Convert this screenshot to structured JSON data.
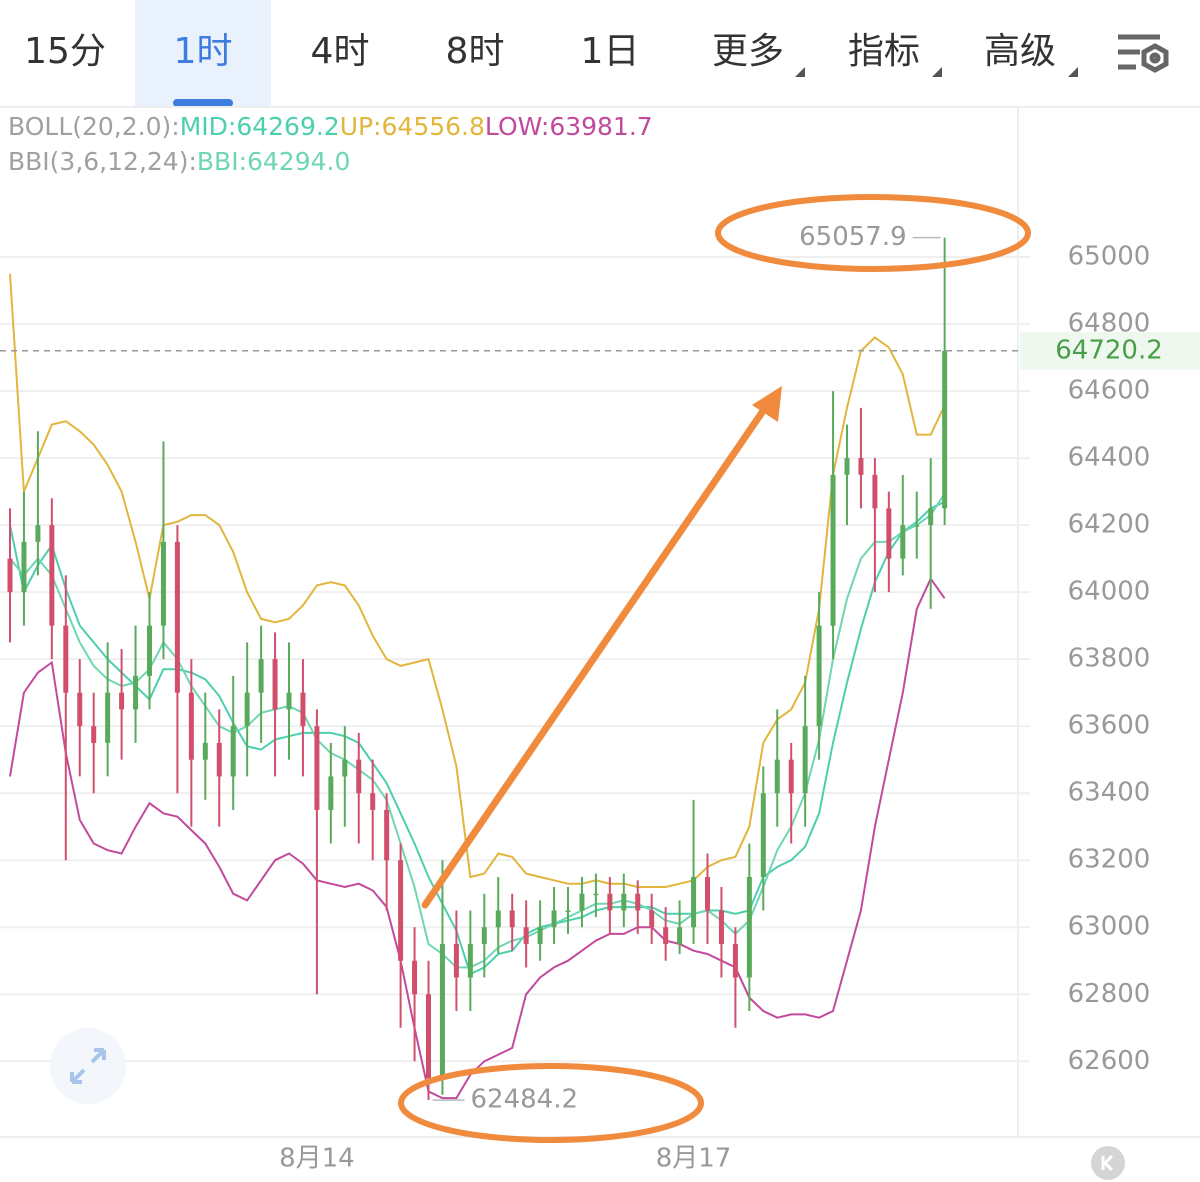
{
  "tabs": [
    "15分",
    "1时",
    "4时",
    "8时",
    "1日"
  ],
  "selected_tab": 1,
  "menus": [
    "更多",
    "指标",
    "高级"
  ],
  "chart_data": {
    "type": "candlestick",
    "indicators": [
      {
        "label": "BOLL(20,2.0):",
        "series": [
          {
            "name": "MID:",
            "color": "#4ccfae",
            "value_label": "64269.2",
            "values": [
              64200,
              64000,
              64080,
              64140,
              64010,
              63900,
              63850,
              63800,
              63760,
              63720,
              63680,
              63770,
              63770,
              63760,
              63740,
              63690,
              63610,
              63540,
              63530,
              63560,
              63570,
              63580,
              63580,
              63580,
              63570,
              63550,
              63490,
              63430,
              63340,
              63250,
              63150,
              63070,
              62990,
              62860,
              62880,
              62920,
              62930,
              62980,
              63000,
              63010,
              63020,
              63030,
              63050,
              63060,
              63060,
              63060,
              63060,
              63040,
              63040,
              63040,
              63050,
              63050,
              63040,
              63050,
              63150,
              63180,
              63200,
              63240,
              63340,
              63550,
              63730,
              63890,
              64030,
              64120,
              64180,
              64210,
              64250,
              64269.2
            ]
          },
          {
            "name": "UP:",
            "color": "#e2b53c",
            "value_label": "64556.8",
            "values": [
              64950,
              64300,
              64400,
              64500,
              64510,
              64480,
              64440,
              64380,
              64300,
              64150,
              63980,
              64200,
              64210,
              64230,
              64230,
              64200,
              64120,
              64000,
              63920,
              63910,
              63920,
              63960,
              64020,
              64030,
              64020,
              63960,
              63870,
              63800,
              63780,
              63790,
              63800,
              63650,
              63480,
              63150,
              63160,
              63220,
              63210,
              63160,
              63150,
              63140,
              63130,
              63130,
              63140,
              63130,
              63130,
              63120,
              63120,
              63120,
              63130,
              63140,
              63180,
              63200,
              63210,
              63300,
              63550,
              63620,
              63650,
              63730,
              63950,
              64350,
              64550,
              64720,
              64760,
              64730,
              64650,
              64470,
              64470,
              64556.8
            ]
          },
          {
            "name": "LOW:",
            "color": "#c24a9c",
            "value_label": "63981.7",
            "values": [
              63450,
              63700,
              63760,
              63790,
              63520,
              63320,
              63250,
              63230,
              63220,
              63300,
              63370,
              63340,
              63330,
              63290,
              63250,
              63180,
              63100,
              63080,
              63140,
              63200,
              63220,
              63190,
              63140,
              63130,
              63120,
              63130,
              63110,
              63060,
              62900,
              62700,
              62510,
              62490,
              62490,
              62560,
              62600,
              62620,
              62640,
              62800,
              62850,
              62880,
              62900,
              62930,
              62960,
              62980,
              62980,
              63000,
              63000,
              62960,
              62950,
              62930,
              62920,
              62900,
              62880,
              62790,
              62750,
              62730,
              62740,
              62740,
              62730,
              62750,
              62900,
              63050,
              63300,
              63500,
              63700,
              63950,
              64040,
              63981.7
            ]
          }
        ]
      },
      {
        "label": "BBI(3,6,12,24):",
        "series": [
          {
            "name": "BBI:",
            "color": "#6fd6b3",
            "value_label": "64294.0",
            "values": [
              64100,
              64050,
              64100,
              64050,
              63950,
              63850,
              63780,
              63740,
              63720,
              63730,
              63770,
              63850,
              63800,
              63720,
              63660,
              63600,
              63580,
              63600,
              63640,
              63650,
              63660,
              63640,
              63560,
              63520,
              63500,
              63470,
              63440,
              63380,
              63250,
              63120,
              62950,
              62920,
              62880,
              62880,
              62900,
              62940,
              62960,
              62970,
              62990,
              63010,
              63030,
              63050,
              63070,
              63070,
              63080,
              63070,
              63050,
              63020,
              63010,
              63040,
              63050,
              63020,
              62980,
              63020,
              63120,
              63230,
              63300,
              63400,
              63560,
              63800,
              63980,
              64100,
              64150,
              64150,
              64180,
              64200,
              64230,
              64294.0
            ]
          }
        ]
      }
    ],
    "categories": [
      null,
      null,
      null,
      null,
      null,
      null,
      null,
      null,
      null,
      null,
      null,
      null,
      null,
      null,
      null,
      null,
      null,
      null,
      null,
      null,
      null,
      null,
      "8月14",
      null,
      null,
      null,
      null,
      null,
      null,
      null,
      null,
      null,
      null,
      null,
      null,
      null,
      null,
      null,
      null,
      null,
      null,
      null,
      null,
      null,
      null,
      null,
      null,
      null,
      null,
      "8月17",
      null,
      null,
      null,
      null,
      null,
      null,
      null,
      null,
      null,
      null,
      null,
      null,
      null,
      null,
      null,
      null,
      null,
      null
    ],
    "open": [
      64100,
      64000,
      64150,
      64200,
      63900,
      63700,
      63600,
      63550,
      63700,
      63650,
      63750,
      63900,
      64150,
      63700,
      63500,
      63550,
      63450,
      63600,
      63700,
      63800,
      63650,
      63700,
      63600,
      63350,
      63450,
      63500,
      63400,
      63350,
      63200,
      62900,
      62800,
      62550,
      62950,
      62850,
      62950,
      63000,
      63050,
      63000,
      62950,
      63000,
      63050,
      63050,
      63100,
      63100,
      63050,
      63100,
      63050,
      63000,
      62950,
      63000,
      63150,
      63050,
      62950,
      62850,
      63150,
      63400,
      63500,
      63400,
      63600,
      63900,
      64350,
      64400,
      64350,
      64250,
      64100,
      64200,
      64200,
      64250
    ],
    "high": [
      64250,
      64300,
      64480,
      64280,
      64050,
      63800,
      63700,
      63850,
      63830,
      63900,
      64000,
      64450,
      64200,
      63800,
      63700,
      63650,
      63750,
      63850,
      63900,
      63880,
      63850,
      63800,
      63650,
      63550,
      63600,
      63580,
      63500,
      63400,
      63250,
      63000,
      62900,
      63200,
      63050,
      63050,
      63100,
      63150,
      63100,
      63080,
      63080,
      63120,
      63120,
      63150,
      63160,
      63150,
      63160,
      63140,
      63100,
      63060,
      63080,
      63380,
      63220,
      63120,
      63000,
      63250,
      63480,
      63650,
      63550,
      63750,
      64000,
      64600,
      64500,
      64550,
      64400,
      64300,
      64350,
      64300,
      64400,
      65057.9
    ],
    "low": [
      63850,
      63900,
      64050,
      63800,
      63200,
      63450,
      63400,
      63450,
      63500,
      63550,
      63650,
      63800,
      63400,
      63300,
      63380,
      63300,
      63350,
      63450,
      63550,
      63450,
      63500,
      63450,
      62800,
      63250,
      63300,
      63250,
      63200,
      63050,
      62700,
      62600,
      62484.2,
      62500,
      62750,
      62750,
      62850,
      62920,
      62930,
      62880,
      62900,
      62950,
      62980,
      63000,
      63030,
      62980,
      63000,
      62980,
      62950,
      62900,
      62920,
      62950,
      62950,
      62850,
      62700,
      62750,
      63050,
      63300,
      63250,
      63300,
      63500,
      63800,
      64200,
      64250,
      64000,
      64000,
      64050,
      64100,
      63950,
      64200
    ],
    "close": [
      64000,
      64150,
      64200,
      63900,
      63700,
      63600,
      63550,
      63700,
      63650,
      63750,
      63900,
      64150,
      63700,
      63500,
      63550,
      63450,
      63600,
      63700,
      63800,
      63650,
      63700,
      63600,
      63350,
      63450,
      63500,
      63400,
      63350,
      63200,
      62900,
      62800,
      62550,
      62950,
      62850,
      62950,
      63000,
      63050,
      63000,
      62950,
      63000,
      63050,
      63050,
      63100,
      63100,
      63050,
      63100,
      63050,
      63000,
      62950,
      63000,
      63150,
      63050,
      62950,
      62850,
      63150,
      63400,
      63500,
      63400,
      63600,
      63900,
      64350,
      64400,
      64350,
      64250,
      64100,
      64200,
      64200,
      64250,
      64720.2
    ],
    "up_color": "#5aaa5c",
    "down_color": "#d24f6c",
    "ylim": [
      62380,
      65200
    ],
    "yticks": [
      62600,
      62800,
      63000,
      63200,
      63400,
      63600,
      63800,
      64000,
      64200,
      64400,
      64600,
      64800,
      65000
    ],
    "grid": true
  }
}
